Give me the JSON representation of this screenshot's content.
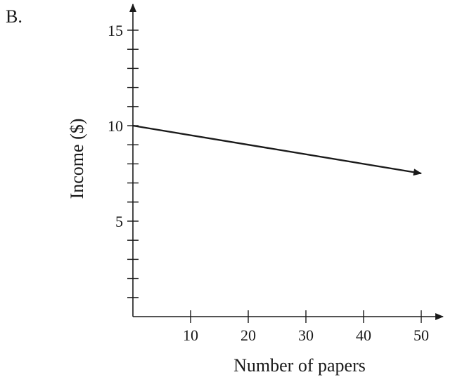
{
  "panel_label": "B.",
  "chart_data": {
    "type": "line",
    "xlabel": "Number of papers",
    "ylabel": "Income ($)",
    "xlim": [
      0,
      55
    ],
    "ylim": [
      0,
      16.5
    ],
    "x_ticks": [
      10,
      20,
      30,
      40,
      50
    ],
    "x_tick_labels": [
      "10",
      "20",
      "30",
      "40",
      "50"
    ],
    "y_ticks": [
      5,
      10,
      15
    ],
    "y_tick_labels": [
      "5",
      "10",
      "15"
    ],
    "y_minor_tick_step": 1,
    "grid": false,
    "series": [
      {
        "x": [
          0,
          50
        ],
        "y": [
          10,
          7.5
        ],
        "end_arrow": true
      }
    ]
  }
}
